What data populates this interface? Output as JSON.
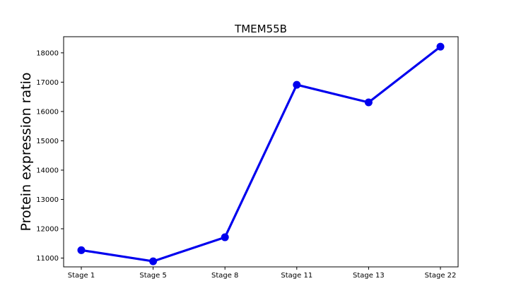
{
  "chart_data": {
    "type": "line",
    "title": "TMEM55B",
    "xlabel": "",
    "ylabel": "Protein expression ratio",
    "categories": [
      "Stage 1",
      "Stage 5",
      "Stage 8",
      "Stage 11",
      "Stage 13",
      "Stage 22"
    ],
    "series": [
      {
        "values": [
          11270,
          10890,
          11710,
          16910,
          16310,
          18210
        ],
        "color": "#0000ee"
      }
    ],
    "ylim": [
      10700,
      18550
    ],
    "yticks": [
      11000,
      12000,
      13000,
      14000,
      15000,
      16000,
      17000,
      18000
    ],
    "grid": false,
    "legend": "none"
  }
}
